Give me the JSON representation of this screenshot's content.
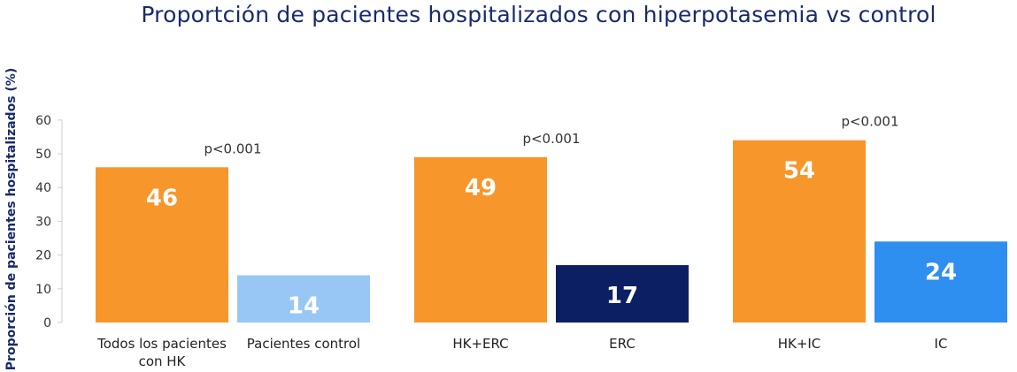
{
  "chart_data": {
    "type": "bar",
    "title": "Proportción de pacientes hospitalizados con hiperpotasemia vs control",
    "ylabel": "Proporción de pacientes hospitalizados (%)",
    "xlabel": "",
    "ylim": [
      0,
      60
    ],
    "yticks": [
      0,
      10,
      20,
      30,
      40,
      50,
      60
    ],
    "categories": [
      [
        "Todos los pacientes",
        "con HK"
      ],
      [
        "Pacientes control"
      ],
      [
        "HK+ERC"
      ],
      [
        "ERC"
      ],
      [
        "HK+IC"
      ],
      [
        "IC"
      ]
    ],
    "values": [
      46,
      14,
      49,
      17,
      54,
      24
    ],
    "value_labels": [
      "46",
      "14",
      "49",
      "17",
      "54",
      "24"
    ],
    "colors": [
      "#f7962a",
      "#99c7f5",
      "#f7962a",
      "#0d1f63",
      "#f7962a",
      "#2e8ff0"
    ],
    "annotations": [
      {
        "text": "p<0.001",
        "group": 0
      },
      {
        "text": "p<0.001",
        "group": 1
      },
      {
        "text": "p<0.001",
        "group": 2
      }
    ],
    "grid": false,
    "legend": "none"
  }
}
